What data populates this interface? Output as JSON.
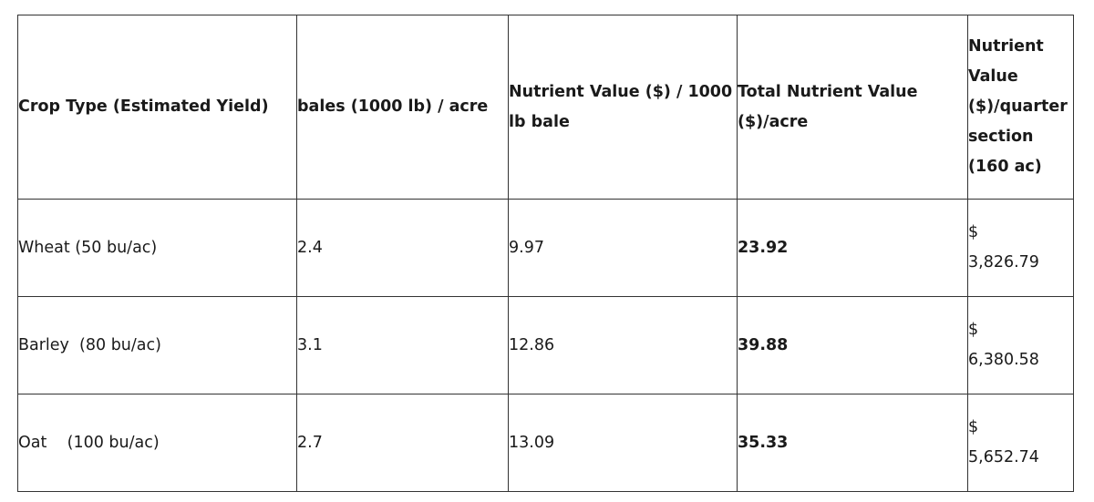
{
  "table": {
    "headers": [
      "Crop Type (Estimated Yield)",
      "bales (1000 lb) / acre",
      "Nutrient Value ($) / 1000 lb bale",
      "Total Nutrient Value ($)/acre",
      "Nutrient Value ($)/quarter section (160 ac)"
    ],
    "rows": [
      {
        "crop": "Wheat (50 bu/ac)",
        "bales": "2.4",
        "value_per_bale": "9.97",
        "total_per_acre": "23.92",
        "currency": "$",
        "per_quarter": "3,826.79"
      },
      {
        "crop": "Barley  (80 bu/ac)",
        "bales": "3.1",
        "value_per_bale": "12.86",
        "total_per_acre": "39.88",
        "currency": "$",
        "per_quarter": "6,380.58"
      },
      {
        "crop": "Oat    (100 bu/ac)",
        "bales": "2.7",
        "value_per_bale": "13.09",
        "total_per_acre": "35.33",
        "currency": "$",
        "per_quarter": "5,652.74"
      }
    ]
  }
}
